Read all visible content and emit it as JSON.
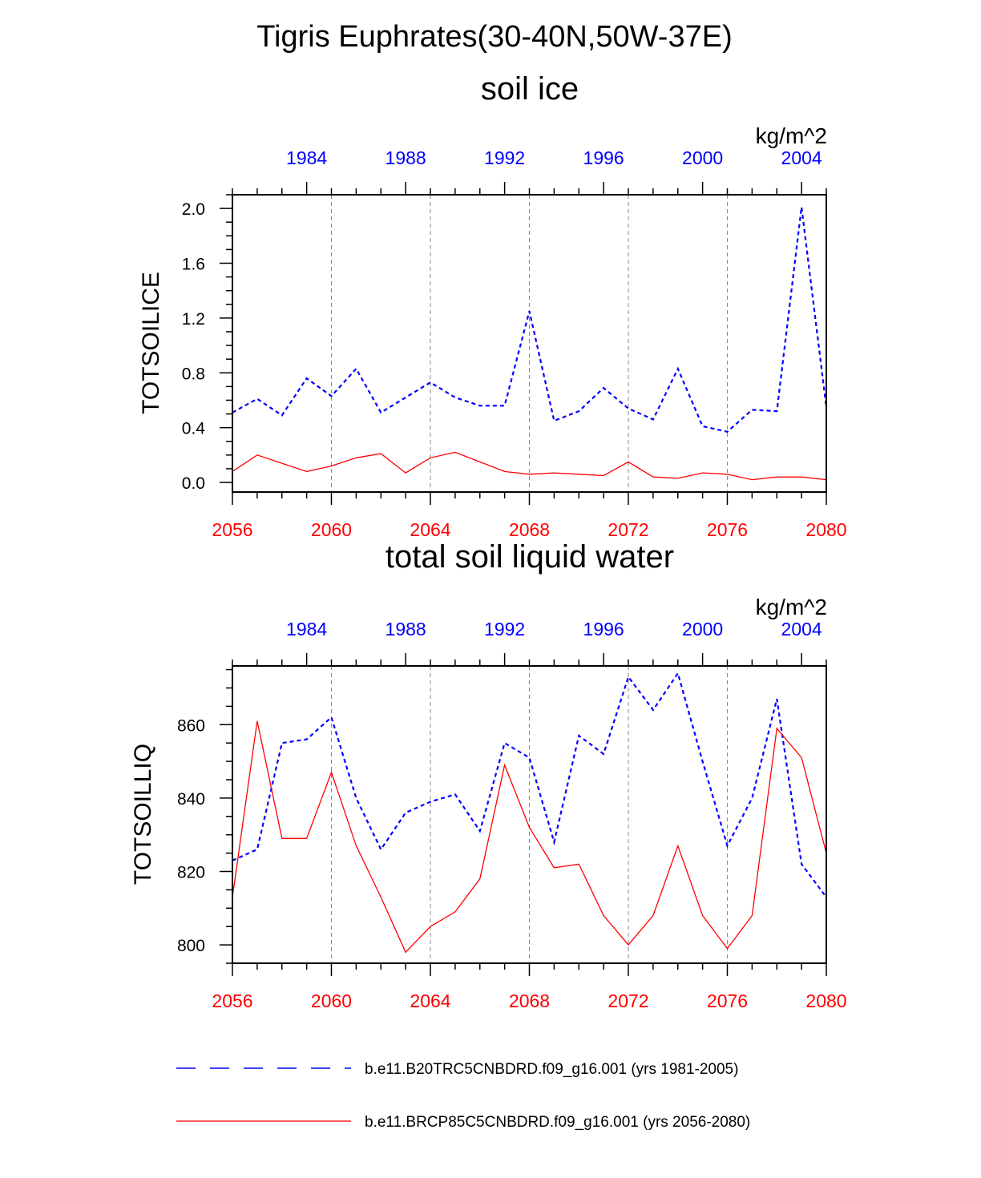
{
  "title": "Tigris Euphrates(30-40N,50W-37E)",
  "legend": {
    "series_a": "b.e11.B20TRC5CNBDRD.f09_g16.001 (yrs 1981-2005)",
    "series_b": "b.e11.BRCP85C5CNBDRD.f09_g16.001 (yrs 2056-2080)"
  },
  "colors": {
    "series_a": "#0000ff",
    "series_b": "#ff0000",
    "grid": "#888888"
  },
  "chart_data": [
    {
      "type": "line",
      "title": "soil ice",
      "units": "kg/m^2",
      "ylabel": "TOTSOILICE",
      "ylim": [
        -0.07,
        2.1
      ],
      "yticks": [
        "0.0",
        "0.4",
        "0.8",
        "1.2",
        "1.6",
        "2.0"
      ],
      "ytick_values": [
        0.0,
        0.4,
        0.8,
        1.2,
        1.6,
        2.0
      ],
      "x_bottom_ticks": [
        "2056",
        "2060",
        "2064",
        "2068",
        "2072",
        "2076",
        "2080"
      ],
      "x_top_ticks": [
        "1984",
        "1988",
        "1992",
        "1996",
        "2000",
        "2004"
      ],
      "x_bottom_years": [
        2056,
        2057,
        2058,
        2059,
        2060,
        2061,
        2062,
        2063,
        2064,
        2065,
        2066,
        2067,
        2068,
        2069,
        2070,
        2071,
        2072,
        2073,
        2074,
        2075,
        2076,
        2077,
        2078,
        2079,
        2080
      ],
      "x_top_years": [
        1981,
        1982,
        1983,
        1984,
        1985,
        1986,
        1987,
        1988,
        1989,
        1990,
        1991,
        1992,
        1993,
        1994,
        1995,
        1996,
        1997,
        1998,
        1999,
        2000,
        2001,
        2002,
        2003,
        2004,
        2005
      ],
      "series": [
        {
          "name": "b.e11.B20TRC5CNBDRD.f09_g16.001 (yrs 1981-2005)",
          "style": "dashed",
          "values": [
            0.51,
            0.61,
            0.49,
            0.76,
            0.63,
            0.83,
            0.51,
            0.62,
            0.73,
            0.62,
            0.56,
            0.56,
            1.25,
            0.45,
            0.52,
            0.69,
            0.54,
            0.46,
            0.83,
            0.41,
            0.37,
            0.53,
            0.52,
            2.01,
            0.55
          ]
        },
        {
          "name": "b.e11.BRCP85C5CNBDRD.f09_g16.001 (yrs 2056-2080)",
          "style": "solid",
          "values": [
            0.08,
            0.2,
            0.14,
            0.08,
            0.12,
            0.18,
            0.21,
            0.07,
            0.18,
            0.22,
            0.15,
            0.08,
            0.06,
            0.07,
            0.06,
            0.05,
            0.15,
            0.04,
            0.03,
            0.07,
            0.06,
            0.02,
            0.04,
            0.04,
            0.02
          ]
        }
      ]
    },
    {
      "type": "line",
      "title": "total soil liquid water",
      "units": "kg/m^2",
      "ylabel": "TOTSOILLIQ",
      "ylim": [
        795,
        876
      ],
      "yticks": [
        "800",
        "820",
        "840",
        "860"
      ],
      "ytick_values": [
        800,
        820,
        840,
        860
      ],
      "x_bottom_ticks": [
        "2056",
        "2060",
        "2064",
        "2068",
        "2072",
        "2076",
        "2080"
      ],
      "x_top_ticks": [
        "1984",
        "1988",
        "1992",
        "1996",
        "2000",
        "2004"
      ],
      "x_bottom_years": [
        2056,
        2057,
        2058,
        2059,
        2060,
        2061,
        2062,
        2063,
        2064,
        2065,
        2066,
        2067,
        2068,
        2069,
        2070,
        2071,
        2072,
        2073,
        2074,
        2075,
        2076,
        2077,
        2078,
        2079,
        2080
      ],
      "x_top_years": [
        1981,
        1982,
        1983,
        1984,
        1985,
        1986,
        1987,
        1988,
        1989,
        1990,
        1991,
        1992,
        1993,
        1994,
        1995,
        1996,
        1997,
        1998,
        1999,
        2000,
        2001,
        2002,
        2003,
        2004,
        2005
      ],
      "series": [
        {
          "name": "b.e11.B20TRC5CNBDRD.f09_g16.001 (yrs 1981-2005)",
          "style": "dashed",
          "values": [
            823,
            826,
            855,
            856,
            862,
            840,
            826,
            836,
            839,
            841,
            831,
            855,
            851,
            828,
            857,
            852,
            873,
            864,
            874,
            850,
            827,
            840,
            867,
            822,
            813
          ]
        },
        {
          "name": "b.e11.BRCP85C5CNBDRD.f09_g16.001 (yrs 2056-2080)",
          "style": "solid",
          "values": [
            813,
            861,
            829,
            829,
            847,
            827,
            813,
            798,
            805,
            809,
            818,
            849,
            832,
            821,
            822,
            808,
            800,
            808,
            827,
            808,
            799,
            808,
            859,
            851,
            825
          ]
        }
      ]
    }
  ]
}
